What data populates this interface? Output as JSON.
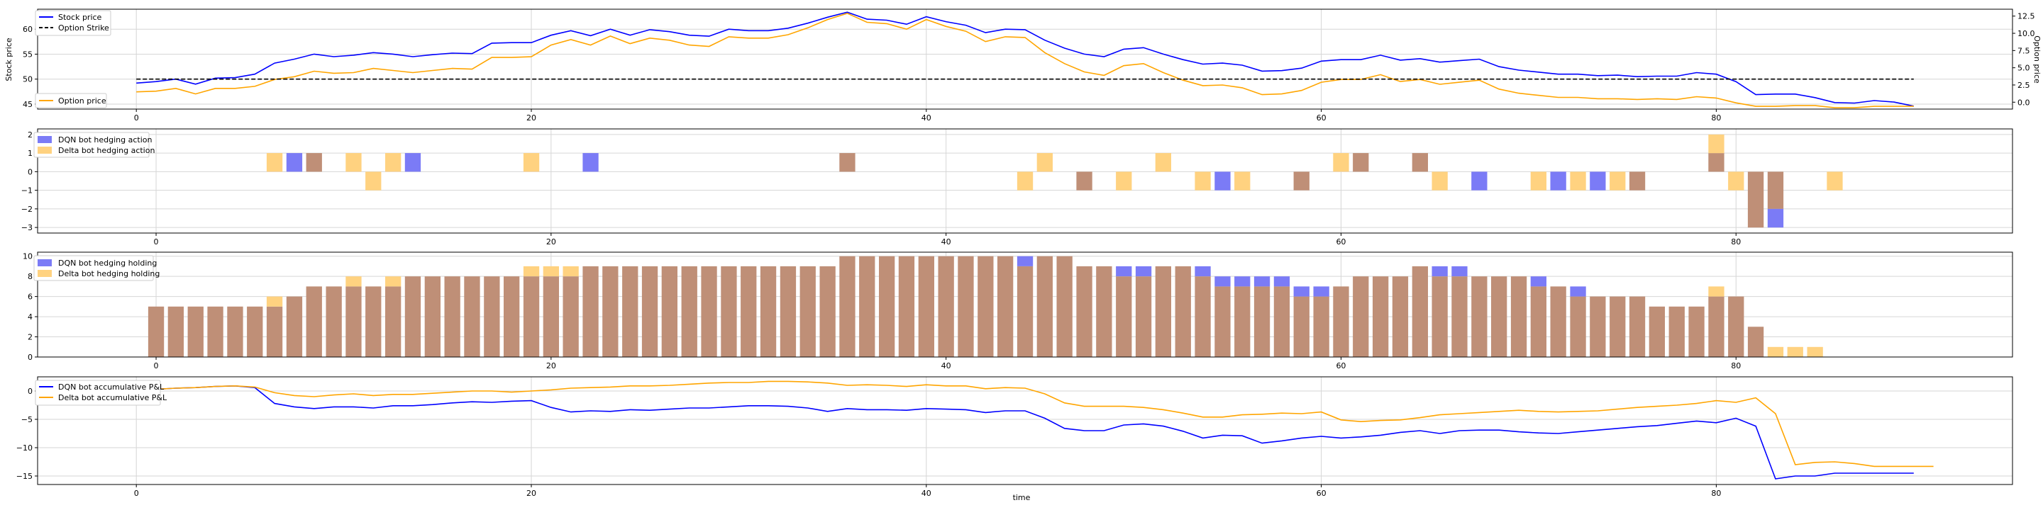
{
  "colors": {
    "dqn": "#0000ff",
    "delta": "#ffa500",
    "strike": "#000000",
    "dqn_bar": "#7b7bf6",
    "delta_bar": "#ffd280",
    "overlap_bar": "#bf8f77",
    "grid": "#d6d6d6"
  },
  "chart_data": [
    {
      "type": "line",
      "panel": "prices",
      "xlim": [
        -5,
        95
      ],
      "ylim": [
        44,
        64
      ],
      "y2lim": [
        -1,
        13.5
      ],
      "xticks": [
        0,
        20,
        40,
        60,
        80
      ],
      "yticks": [
        45,
        50,
        55,
        60
      ],
      "y2ticks": [
        0,
        2.5,
        5,
        7.5,
        10,
        12.5
      ],
      "ylabel": "Stock price",
      "y2label": "Option price",
      "grid": true,
      "series": [
        {
          "name": "Stock price",
          "axis": "left",
          "style": "solid",
          "values": [
            49.2,
            49.5,
            50.0,
            49.0,
            50.2,
            50.3,
            51.0,
            53.2,
            54.0,
            55.0,
            54.5,
            54.8,
            55.3,
            55.0,
            54.5,
            54.9,
            55.2,
            55.1,
            57.2,
            57.3,
            57.3,
            58.8,
            59.7,
            58.7,
            60.0,
            58.8,
            59.9,
            59.5,
            58.8,
            58.6,
            60.0,
            59.7,
            59.7,
            60.2,
            61.2,
            62.4,
            63.4,
            62.0,
            61.8,
            61.0,
            62.5,
            61.5,
            60.8,
            59.3,
            60.0,
            59.9,
            57.8,
            56.2,
            55.0,
            54.5,
            56.0,
            56.3,
            55.0,
            53.9,
            53.0,
            53.2,
            52.8,
            51.6,
            51.7,
            52.2,
            53.6,
            53.9,
            53.9,
            54.8,
            53.8,
            54.1,
            53.4,
            53.7,
            54.0,
            52.5,
            51.8,
            51.4,
            51.0,
            51.0,
            50.7,
            50.8,
            50.5,
            50.6,
            50.6,
            51.3,
            51.0,
            49.5,
            46.9,
            47.0,
            47.0,
            46.3,
            45.3,
            45.2,
            45.7,
            45.4,
            44.6
          ]
        },
        {
          "name": "Option price",
          "axis": "right",
          "style": "solid",
          "values": [
            1.5,
            1.6,
            2.0,
            1.2,
            2.0,
            2.0,
            2.3,
            3.3,
            3.7,
            4.5,
            4.2,
            4.3,
            4.9,
            4.6,
            4.3,
            4.6,
            4.9,
            4.8,
            6.5,
            6.5,
            6.6,
            8.3,
            9.1,
            8.3,
            9.6,
            8.5,
            9.3,
            9.0,
            8.3,
            8.1,
            9.5,
            9.3,
            9.3,
            9.8,
            10.8,
            12.0,
            12.9,
            11.6,
            11.4,
            10.6,
            12.0,
            11.0,
            10.3,
            8.8,
            9.5,
            9.4,
            7.2,
            5.6,
            4.4,
            3.9,
            5.3,
            5.6,
            4.3,
            3.2,
            2.4,
            2.5,
            2.1,
            1.1,
            1.2,
            1.7,
            2.9,
            3.3,
            3.3,
            4.0,
            3.0,
            3.3,
            2.6,
            2.9,
            3.2,
            1.9,
            1.3,
            1.0,
            0.7,
            0.7,
            0.5,
            0.5,
            0.4,
            0.5,
            0.4,
            0.8,
            0.6,
            -0.1,
            -0.6,
            -0.6,
            -0.5,
            -0.5,
            -0.8,
            -0.8,
            -0.6,
            -0.6,
            -0.6
          ]
        },
        {
          "name": "Option Strike",
          "axis": "left",
          "style": "dashed",
          "x": [
            0,
            90
          ],
          "values": [
            50,
            50
          ]
        }
      ],
      "legend": [
        {
          "position": "upper-left",
          "entries": [
            "Stock price",
            "Option Strike"
          ]
        },
        {
          "position": "lower-left",
          "entries": [
            "Option price"
          ]
        }
      ]
    },
    {
      "type": "bar",
      "panel": "hedging-action",
      "xlim": [
        -6,
        94
      ],
      "ylim": [
        -3.3,
        2.3
      ],
      "xticks": [
        0,
        20,
        40,
        60,
        80
      ],
      "yticks": [
        -3,
        -2,
        -1,
        0,
        1,
        2
      ],
      "grid": true,
      "legend": {
        "position": "upper-left"
      },
      "series": [
        {
          "name": "DQN bot hedging action",
          "points": [
            [
              7,
              1
            ],
            [
              8,
              1
            ],
            [
              13,
              1
            ],
            [
              22,
              1
            ],
            [
              35,
              1
            ],
            [
              47,
              -1
            ],
            [
              54,
              -1
            ],
            [
              58,
              -1
            ],
            [
              61,
              1
            ],
            [
              64,
              1
            ],
            [
              67,
              -1
            ],
            [
              71,
              -1
            ],
            [
              73,
              -1
            ],
            [
              75,
              -1
            ],
            [
              79,
              1
            ],
            [
              81,
              -3
            ],
            [
              82,
              -3
            ]
          ]
        },
        {
          "name": "Delta bot hedging action",
          "points": [
            [
              6,
              1
            ],
            [
              8,
              1
            ],
            [
              10,
              1
            ],
            [
              11,
              -1
            ],
            [
              12,
              1
            ],
            [
              19,
              1
            ],
            [
              35,
              1
            ],
            [
              44,
              -1
            ],
            [
              45,
              1
            ],
            [
              47,
              -1
            ],
            [
              49,
              -1
            ],
            [
              51,
              1
            ],
            [
              53,
              -1
            ],
            [
              55,
              -1
            ],
            [
              58,
              -1
            ],
            [
              60,
              1
            ],
            [
              61,
              1
            ],
            [
              64,
              1
            ],
            [
              65,
              -1
            ],
            [
              70,
              -1
            ],
            [
              72,
              -1
            ],
            [
              74,
              -1
            ],
            [
              75,
              -1
            ],
            [
              79,
              2
            ],
            [
              80,
              -1
            ],
            [
              81,
              -3
            ],
            [
              82,
              -2
            ],
            [
              85,
              -1
            ]
          ]
        }
      ]
    },
    {
      "type": "bar",
      "panel": "holding",
      "xlim": [
        -6,
        94
      ],
      "ylim": [
        0,
        10.4
      ],
      "xticks": [
        0,
        20,
        40,
        60,
        80
      ],
      "yticks": [
        0,
        2,
        4,
        6,
        8,
        10
      ],
      "grid": true,
      "legend": {
        "position": "upper-left"
      },
      "series": [
        {
          "name": "DQN bot hedging holding",
          "values": [
            5,
            5,
            5,
            5,
            5,
            5,
            5,
            6,
            7,
            7,
            7,
            7,
            7,
            8,
            8,
            8,
            8,
            8,
            8,
            8,
            8,
            8,
            9,
            9,
            9,
            9,
            9,
            9,
            9,
            9,
            9,
            9,
            9,
            9,
            9,
            10,
            10,
            10,
            10,
            10,
            10,
            10,
            10,
            10,
            10,
            10,
            10,
            9,
            9,
            9,
            9,
            9,
            9,
            9,
            8,
            8,
            8,
            8,
            7,
            7,
            7,
            8,
            8,
            8,
            9,
            9,
            9,
            8,
            8,
            8,
            8,
            7,
            7,
            6,
            6,
            6,
            5,
            5,
            5,
            6,
            6,
            3,
            0,
            0,
            0
          ]
        },
        {
          "name": "Delta bot hedging holding",
          "values": [
            5,
            5,
            5,
            5,
            5,
            5,
            6,
            6,
            7,
            7,
            8,
            7,
            8,
            8,
            8,
            8,
            8,
            8,
            8,
            9,
            9,
            9,
            9,
            9,
            9,
            9,
            9,
            9,
            9,
            9,
            9,
            9,
            9,
            9,
            9,
            10,
            10,
            10,
            10,
            10,
            10,
            10,
            10,
            10,
            9,
            10,
            10,
            9,
            9,
            8,
            8,
            9,
            9,
            8,
            7,
            7,
            7,
            7,
            6,
            6,
            7,
            8,
            8,
            8,
            9,
            8,
            8,
            8,
            8,
            8,
            7,
            7,
            6,
            6,
            6,
            6,
            5,
            5,
            5,
            7,
            6,
            3,
            1,
            1,
            1
          ]
        }
      ]
    },
    {
      "type": "line",
      "panel": "pnl",
      "xlim": [
        -5,
        95
      ],
      "ylim": [
        -16.5,
        2.5
      ],
      "xticks": [
        0,
        20,
        40,
        60,
        80
      ],
      "yticks": [
        -15,
        -10,
        -5,
        0
      ],
      "xlabel": "time",
      "grid": true,
      "legend": {
        "position": "upper-left"
      },
      "series": [
        {
          "name": "DQN bot accumulative P&L",
          "values": [
            0.0,
            0.3,
            0.5,
            0.6,
            0.8,
            0.9,
            0.6,
            -2.2,
            -2.8,
            -3.1,
            -2.8,
            -2.8,
            -3.0,
            -2.6,
            -2.6,
            -2.4,
            -2.1,
            -1.9,
            -2.0,
            -1.8,
            -1.7,
            -2.9,
            -3.7,
            -3.5,
            -3.6,
            -3.3,
            -3.4,
            -3.2,
            -3.0,
            -3.0,
            -2.8,
            -2.6,
            -2.6,
            -2.7,
            -3.0,
            -3.6,
            -3.1,
            -3.3,
            -3.3,
            -3.4,
            -3.1,
            -3.2,
            -3.3,
            -3.8,
            -3.5,
            -3.5,
            -4.8,
            -6.6,
            -7.0,
            -7.0,
            -6.0,
            -5.8,
            -6.2,
            -7.1,
            -8.3,
            -7.8,
            -7.9,
            -9.2,
            -8.8,
            -8.3,
            -8.0,
            -8.3,
            -8.1,
            -7.8,
            -7.3,
            -7.0,
            -7.5,
            -7.0,
            -6.9,
            -6.9,
            -7.2,
            -7.4,
            -7.5,
            -7.2,
            -6.9,
            -6.6,
            -6.3,
            -6.1,
            -5.7,
            -5.3,
            -5.6,
            -4.8,
            -6.2,
            -15.5,
            -15.0,
            -15.0,
            -14.5,
            -14.5,
            -14.5,
            -14.5,
            -14.5
          ]
        },
        {
          "name": "Delta bot accumulative P&L",
          "values": [
            0.0,
            0.3,
            0.5,
            0.6,
            0.8,
            0.9,
            0.7,
            -0.3,
            -0.8,
            -1.0,
            -0.7,
            -0.5,
            -0.8,
            -0.6,
            -0.6,
            -0.4,
            -0.2,
            0.0,
            0.0,
            -0.2,
            0.0,
            0.2,
            0.5,
            0.6,
            0.7,
            0.9,
            0.9,
            1.0,
            1.2,
            1.4,
            1.5,
            1.5,
            1.7,
            1.7,
            1.6,
            1.4,
            1.0,
            1.1,
            1.0,
            0.8,
            1.1,
            0.9,
            0.9,
            0.4,
            0.6,
            0.5,
            -0.5,
            -2.1,
            -2.7,
            -2.7,
            -2.7,
            -2.9,
            -3.3,
            -3.9,
            -4.6,
            -4.6,
            -4.2,
            -4.1,
            -3.9,
            -4.0,
            -3.7,
            -5.1,
            -5.4,
            -5.2,
            -5.1,
            -4.7,
            -4.2,
            -4.0,
            -3.8,
            -3.6,
            -3.4,
            -3.6,
            -3.7,
            -3.6,
            -3.5,
            -3.2,
            -2.9,
            -2.7,
            -2.5,
            -2.2,
            -1.7,
            -2.0,
            -1.2,
            -4.0,
            -13.0,
            -12.6,
            -12.5,
            -12.8,
            -13.3,
            -13.3,
            -13.3,
            -13.3
          ]
        }
      ]
    }
  ]
}
